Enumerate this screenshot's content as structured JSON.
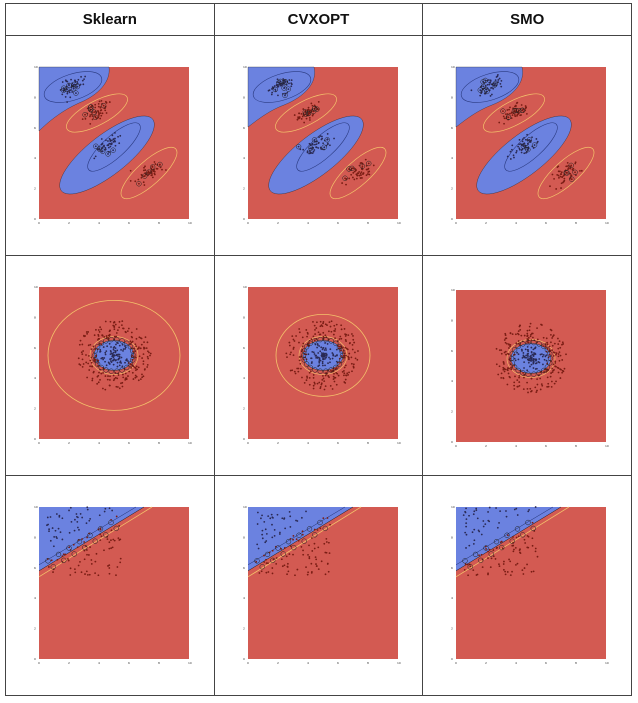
{
  "columns": [
    "Sklearn",
    "CVXOPT",
    "SMO"
  ],
  "colors": {
    "region_class_a": "#6b82e0",
    "region_class_b": "#d35a52",
    "margin_line": "#f4c26b",
    "boundary_line": "#1a1a1a",
    "point_dark": "#2a2a55",
    "point_red": "#7a1d14"
  },
  "axis_ticks": [
    "0",
    "2",
    "4",
    "6",
    "8",
    "10"
  ],
  "rows": [
    {
      "dataset": "four-blobs",
      "cells": [
        "Sklearn",
        "CVXOPT",
        "SMO"
      ]
    },
    {
      "dataset": "concentric-rings",
      "cells": [
        "Sklearn",
        "CVXOPT",
        "SMO"
      ]
    },
    {
      "dataset": "linear-split",
      "cells": [
        "Sklearn",
        "CVXOPT",
        "SMO"
      ]
    }
  ]
}
